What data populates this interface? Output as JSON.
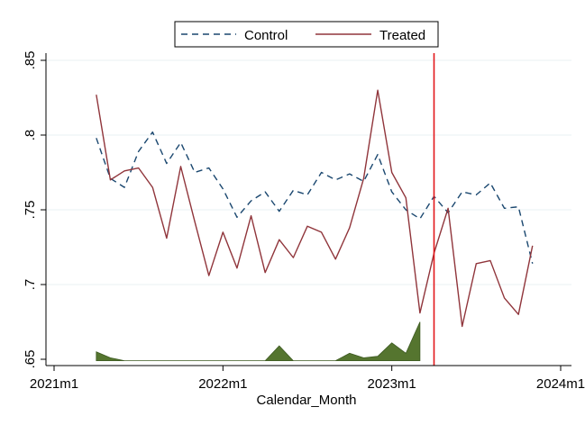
{
  "chart_data": {
    "type": "line",
    "title": "",
    "xlabel": "Calendar_Month",
    "ylabel": "",
    "xlim": [
      "2021-01",
      "2024-01"
    ],
    "ylim": [
      0.65,
      0.855
    ],
    "x_ticks": [
      {
        "value": "2021-01",
        "label": "2021m1"
      },
      {
        "value": "2022-01",
        "label": "2022m1"
      },
      {
        "value": "2023-01",
        "label": "2023m1"
      },
      {
        "value": "2024-01",
        "label": "2024m1"
      }
    ],
    "y_ticks": [
      {
        "value": 0.65,
        "label": ".65"
      },
      {
        "value": 0.7,
        "label": ".7"
      },
      {
        "value": 0.75,
        "label": ".75"
      },
      {
        "value": 0.8,
        "label": ".8"
      },
      {
        "value": 0.85,
        "label": ".85"
      }
    ],
    "grid": "horizontal",
    "legend": {
      "position": "top-center",
      "entries": [
        "Control",
        "Treated"
      ]
    },
    "x": [
      "2021-04",
      "2021-05",
      "2021-06",
      "2021-07",
      "2021-08",
      "2021-09",
      "2021-10",
      "2021-11",
      "2021-12",
      "2022-01",
      "2022-02",
      "2022-03",
      "2022-04",
      "2022-05",
      "2022-06",
      "2022-07",
      "2022-08",
      "2022-09",
      "2022-10",
      "2022-11",
      "2022-12",
      "2023-01",
      "2023-02",
      "2023-03",
      "2023-04",
      "2023-05",
      "2023-06",
      "2023-07",
      "2023-08",
      "2023-09",
      "2023-10",
      "2023-11"
    ],
    "series": [
      {
        "name": "Control",
        "style": "dashed",
        "color": "#1a476f",
        "values": [
          0.798,
          0.771,
          0.765,
          0.789,
          0.802,
          0.781,
          0.795,
          0.775,
          0.778,
          0.764,
          0.745,
          0.756,
          0.762,
          0.749,
          0.763,
          0.76,
          0.775,
          0.77,
          0.774,
          0.769,
          0.787,
          0.762,
          0.75,
          0.744,
          0.759,
          0.748,
          0.762,
          0.76,
          0.768,
          0.751,
          0.752,
          0.714
        ]
      },
      {
        "name": "Treated",
        "style": "solid",
        "color": "#90353b",
        "values": [
          0.827,
          0.77,
          0.776,
          0.778,
          0.765,
          0.731,
          0.779,
          0.742,
          0.706,
          0.735,
          0.711,
          0.746,
          0.708,
          0.73,
          0.718,
          0.739,
          0.735,
          0.717,
          0.738,
          0.771,
          0.83,
          0.775,
          0.758,
          0.681,
          0.721,
          0.751,
          0.672,
          0.714,
          0.716,
          0.691,
          0.68,
          0.726
        ]
      }
    ],
    "area_series": {
      "color": "#55752f",
      "baseline": 0.649,
      "values": [
        0.655,
        0.651,
        0.649,
        0.649,
        0.649,
        0.649,
        0.649,
        0.649,
        0.649,
        0.649,
        0.649,
        0.649,
        0.649,
        0.659,
        0.649,
        0.649,
        0.649,
        0.649,
        0.654,
        0.651,
        0.652,
        0.661,
        0.654,
        0.675
      ]
    },
    "reference_line": {
      "x": "2023-04",
      "color": "#e3171b"
    }
  }
}
